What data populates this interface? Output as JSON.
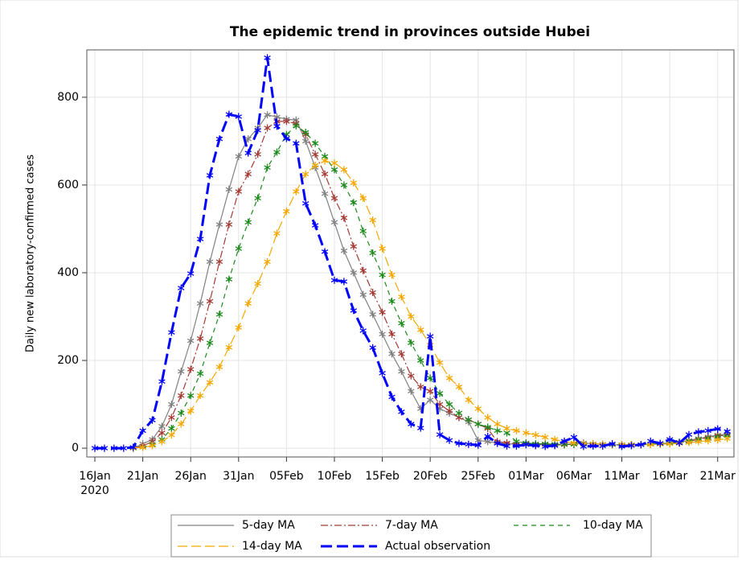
{
  "chart_data": {
    "type": "line",
    "title": "The epidemic trend in provinces outside Hubei",
    "y_label": "Daily new laboratory-confirmed cases",
    "x_year": "2020",
    "x": [
      0,
      1,
      2,
      3,
      4,
      5,
      6,
      7,
      8,
      9,
      10,
      11,
      12,
      13,
      14,
      15,
      16,
      17,
      18,
      19,
      20,
      21,
      22,
      23,
      24,
      25,
      26,
      27,
      28,
      29,
      30,
      31,
      32,
      33,
      34,
      35,
      36,
      37,
      38,
      39,
      40,
      41,
      42,
      43,
      44,
      45,
      46,
      47,
      48,
      49,
      50,
      51,
      52,
      53,
      54,
      55,
      56,
      57,
      58,
      59,
      60,
      61,
      62,
      63,
      64,
      65,
      66
    ],
    "xlim": [
      -0.84,
      66.7
    ],
    "xticks": [
      {
        "value": 0,
        "label": "16Jan"
      },
      {
        "value": 5,
        "label": "21Jan"
      },
      {
        "value": 10,
        "label": "26Jan"
      },
      {
        "value": 15,
        "label": "31Jan"
      },
      {
        "value": 20,
        "label": "05Feb"
      },
      {
        "value": 25,
        "label": "10Feb"
      },
      {
        "value": 30,
        "label": "15Feb"
      },
      {
        "value": 35,
        "label": "20Feb"
      },
      {
        "value": 40,
        "label": "25Feb"
      },
      {
        "value": 45,
        "label": "01Mar"
      },
      {
        "value": 50,
        "label": "06Mar"
      },
      {
        "value": 55,
        "label": "11Mar"
      },
      {
        "value": 60,
        "label": "16Mar"
      },
      {
        "value": 65,
        "label": "21Mar"
      }
    ],
    "ylim": [
      -20,
      908
    ],
    "yticks": [
      0,
      200,
      400,
      600,
      800
    ],
    "grid": true,
    "legend": "bottom",
    "series": [
      {
        "name": "5-day MA",
        "color": "#808080",
        "dash": "none",
        "width": 1.2,
        "values": [
          null,
          null,
          null,
          null,
          0,
          10,
          20,
          50,
          100,
          175,
          245,
          330,
          425,
          510,
          590,
          665,
          705,
          730,
          760,
          755,
          750,
          748,
          700,
          640,
          580,
          515,
          450,
          400,
          350,
          305,
          260,
          215,
          175,
          130,
          90,
          110,
          90,
          80,
          70,
          60,
          18,
          15,
          12,
          10,
          9,
          8,
          8,
          8,
          7,
          8,
          10,
          12,
          10,
          9,
          8,
          7,
          7,
          8,
          9,
          10,
          12,
          14,
          18,
          22,
          26,
          30,
          32
        ]
      },
      {
        "name": "7-day MA",
        "color": "#a33a33",
        "dash": "9 3 2 3",
        "width": 1.2,
        "values": [
          null,
          null,
          null,
          null,
          0,
          5,
          15,
          35,
          70,
          120,
          180,
          250,
          335,
          425,
          510,
          585,
          625,
          670,
          730,
          745,
          745,
          740,
          715,
          670,
          625,
          570,
          525,
          460,
          405,
          355,
          310,
          260,
          215,
          165,
          140,
          130,
          100,
          85,
          70,
          65,
          55,
          45,
          15,
          12,
          10,
          10,
          9,
          9,
          8,
          8,
          9,
          10,
          10,
          9,
          8,
          8,
          8,
          8,
          9,
          10,
          11,
          13,
          16,
          20,
          24,
          28,
          30
        ]
      },
      {
        "name": "10-day MA",
        "color": "#1b8a1b",
        "dash": "6 5",
        "width": 1.2,
        "values": [
          null,
          null,
          null,
          null,
          0,
          2,
          8,
          20,
          45,
          80,
          120,
          170,
          240,
          305,
          385,
          455,
          515,
          570,
          640,
          675,
          715,
          735,
          720,
          695,
          665,
          635,
          600,
          560,
          495,
          445,
          395,
          335,
          285,
          240,
          200,
          160,
          125,
          100,
          80,
          65,
          55,
          48,
          40,
          35,
          15,
          12,
          10,
          10,
          9,
          9,
          9,
          9,
          9,
          9,
          8,
          8,
          8,
          8,
          9,
          10,
          11,
          13,
          16,
          19,
          22,
          25,
          28
        ]
      },
      {
        "name": "14-day MA",
        "color": "#f5a800",
        "dash": "12 5",
        "width": 1.2,
        "values": [
          null,
          null,
          null,
          null,
          0,
          2,
          6,
          15,
          30,
          55,
          85,
          120,
          150,
          185,
          230,
          275,
          330,
          375,
          425,
          490,
          540,
          585,
          625,
          645,
          655,
          650,
          635,
          605,
          570,
          520,
          455,
          395,
          345,
          300,
          270,
          235,
          195,
          160,
          140,
          110,
          90,
          70,
          55,
          45,
          40,
          35,
          30,
          25,
          20,
          15,
          12,
          10,
          10,
          9,
          9,
          8,
          8,
          8,
          8,
          9,
          10,
          11,
          13,
          15,
          17,
          19,
          22
        ]
      },
      {
        "name": "Actual observation",
        "color": "#0000ff",
        "dash": "14 6",
        "width": 3,
        "values": [
          0,
          0,
          0,
          0,
          2,
          40,
          64,
          152,
          264,
          365,
          398,
          477,
          622,
          705,
          761,
          756,
          673,
          725,
          890,
          734,
          706,
          695,
          558,
          508,
          448,
          383,
          380,
          314,
          268,
          229,
          171,
          117,
          83,
          55,
          46,
          255,
          31,
          18,
          11,
          9,
          7,
          27,
          11,
          5,
          5,
          8,
          6,
          4,
          6,
          16,
          25,
          4,
          5,
          5,
          10,
          4,
          6,
          8,
          16,
          11,
          20,
          12,
          31,
          37,
          40,
          44,
          38
        ]
      }
    ]
  }
}
